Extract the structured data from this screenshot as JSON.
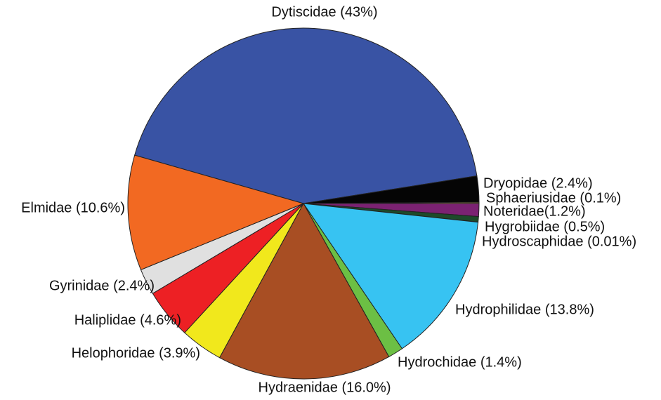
{
  "chart_data": {
    "type": "pie",
    "categories": [
      "Dytiscidae (43%)",
      "Dryopidae (2.4%)",
      "Sphaeriusidae (0.1%)",
      "Noteridae(1.2%)",
      "Hygrobiidae (0.5%)",
      "Hydroscaphidae (0.01%)",
      "Hydrophilidae (13.8%)",
      "Hydrochidae (1.4%)",
      "Hydraenidae (16.0%)",
      "Helophoridae (3.9%)",
      "Haliplidae (4.6%)",
      "Gyrinidae (2.4%)",
      "Elmidae (10.6%)"
    ],
    "values": [
      43,
      2.4,
      0.1,
      1.2,
      0.5,
      0.01,
      13.8,
      1.4,
      16.0,
      3.9,
      4.6,
      2.4,
      10.6
    ],
    "colors": [
      "#3953a4",
      "#050505",
      "#f5e642",
      "#7b2272",
      "#1d4a2a",
      "#d8a0d0",
      "#37c3f2",
      "#6cbf44",
      "#a84e23",
      "#f1e81c",
      "#ed2024",
      "#e0e0e0",
      "#f26922"
    ],
    "start_angle": -74,
    "direction": "clockwise"
  }
}
